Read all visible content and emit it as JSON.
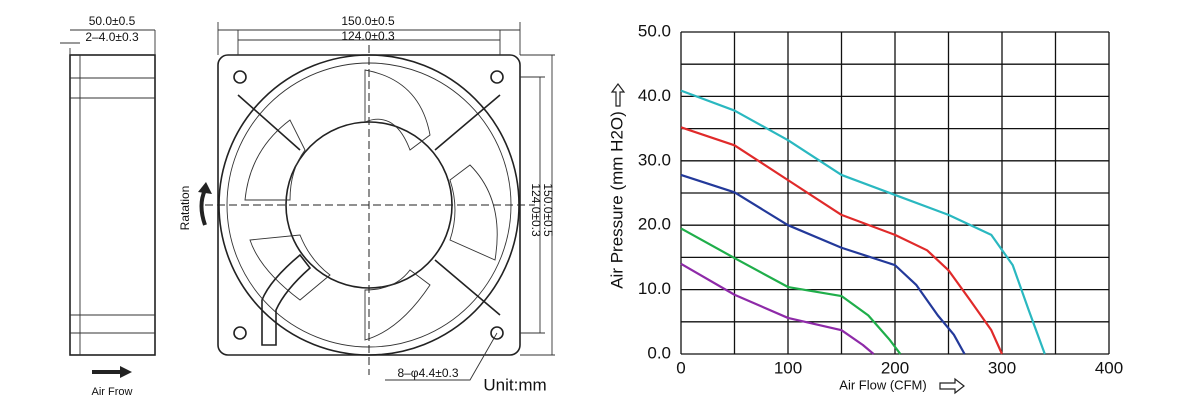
{
  "drawing": {
    "side_width": "50.0±0.5",
    "side_hole": "2–4.0±0.3",
    "airflow_label": "Air Frow",
    "front_width": "150.0±0.5",
    "front_hole_spacing": "124.0±0.3",
    "rotation_label": "Ratation",
    "front_hole_spacing_v": "124.0±0.3",
    "front_height": "150.0±0.5",
    "hole_spec": "8–φ4.4±0.3",
    "unit": "Unit:mm"
  },
  "chart_data": {
    "type": "line",
    "xlabel": "Air Flow (CFM)",
    "ylabel": "Air Pressure (mm H2O)",
    "xlim": [
      0,
      400
    ],
    "ylim": [
      0,
      50
    ],
    "xticks": [
      0,
      100,
      200,
      300,
      400
    ],
    "yticks": [
      {
        "value": 0,
        "label": "0.0"
      },
      {
        "value": 10,
        "label": "10.0"
      },
      {
        "value": 20,
        "label": "20.0"
      },
      {
        "value": 30,
        "label": "30.0"
      },
      {
        "value": 40,
        "label": "40.0"
      },
      {
        "value": 50,
        "label": "50.0"
      }
    ],
    "xgrid": [
      0,
      50,
      100,
      150,
      200,
      250,
      300,
      350,
      400
    ],
    "ygrid": [
      0,
      5,
      10,
      15,
      20,
      25,
      30,
      35,
      40,
      45,
      50
    ],
    "series": [
      {
        "color": "#2ab8c0",
        "x": [
          0,
          50,
          100,
          150,
          200,
          250,
          290,
          310,
          325,
          340
        ],
        "values": [
          40.9,
          37.8,
          33.2,
          27.8,
          24.7,
          21.6,
          18.5,
          13.8,
          6.8,
          0
        ]
      },
      {
        "color": "#e02a2a",
        "x": [
          0,
          50,
          100,
          150,
          200,
          230,
          250,
          270,
          290,
          300
        ],
        "values": [
          35.2,
          32.4,
          27,
          21.6,
          18.5,
          16.1,
          13,
          8.4,
          3.7,
          0
        ]
      },
      {
        "color": "#23399a",
        "x": [
          0,
          50,
          100,
          150,
          200,
          220,
          240,
          255,
          265
        ],
        "values": [
          27.8,
          25.1,
          20,
          16.5,
          13.8,
          10.7,
          6,
          3,
          0
        ]
      },
      {
        "color": "#1fae4a",
        "x": [
          0,
          50,
          100,
          150,
          175,
          195,
          205
        ],
        "values": [
          19.5,
          14.9,
          10.4,
          9,
          6,
          2.2,
          0
        ]
      },
      {
        "color": "#8e2aa8",
        "x": [
          0,
          50,
          100,
          150,
          170,
          180
        ],
        "values": [
          14,
          9.2,
          5.6,
          3.7,
          1.4,
          0
        ]
      }
    ]
  }
}
